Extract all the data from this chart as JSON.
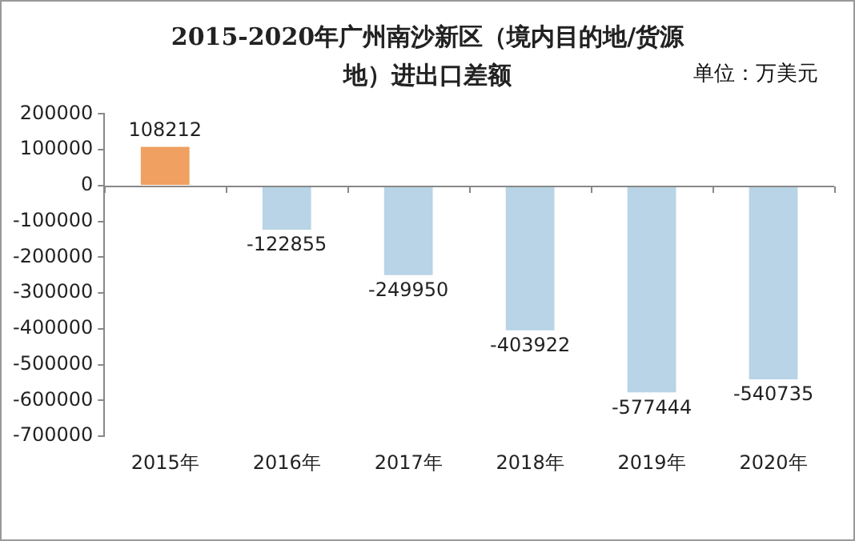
{
  "chart_data": {
    "type": "bar",
    "title": "2015-2020年广州南沙新区（境内目的地/货源地）进出口差额",
    "annotations": [
      "单位：万美元"
    ],
    "categories": [
      "2015年",
      "2016年",
      "2017年",
      "2018年",
      "2019年",
      "2020年"
    ],
    "values": [
      108212,
      -122855,
      -249950,
      -403922,
      -577444,
      -540735
    ],
    "colors": [
      "#f0a060",
      "#b8d4e6",
      "#b8d4e6",
      "#b8d4e6",
      "#b8d4e6",
      "#b8d4e6"
    ],
    "ylim": [
      -700000,
      200000
    ],
    "yticks": [
      -700000,
      -600000,
      -500000,
      -400000,
      -300000,
      -200000,
      -100000,
      0,
      100000,
      200000
    ],
    "data_labels": true
  }
}
